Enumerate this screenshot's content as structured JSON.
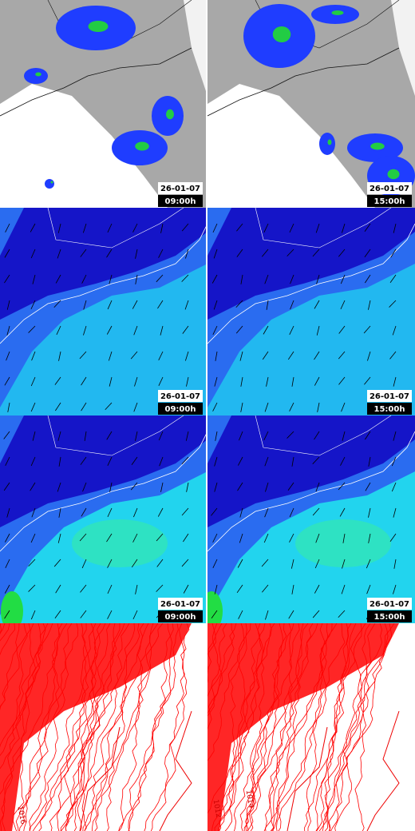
{
  "panels": [
    {
      "date": "26-01-07",
      "time": "09:00h"
    },
    {
      "date": "26-01-07",
      "time": "15:00h"
    },
    {
      "date": "26-01-07",
      "time": "09:00h"
    },
    {
      "date": "26-01-07",
      "time": "15:00h"
    },
    {
      "date": "26-01-07",
      "time": "09:00h"
    },
    {
      "date": "26-01-07",
      "time": "15:00h"
    }
  ],
  "pressure_panels": [
    {
      "labels": [
        "1016"
      ]
    },
    {
      "labels": [
        "1012",
        "1014"
      ]
    }
  ]
}
